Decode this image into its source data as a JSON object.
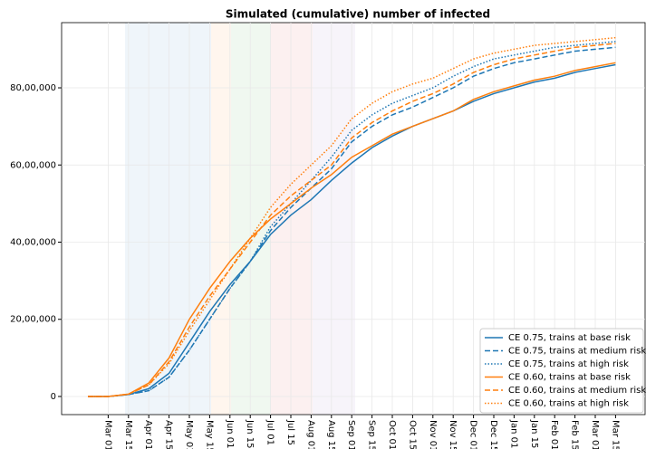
{
  "chart_data": {
    "type": "line",
    "title": "Simulated (cumulative) number of infected",
    "categories": [
      null,
      "Mar 01",
      "Mar 15",
      "Apr 01",
      "Apr 15",
      "May 01",
      "May 15",
      "Jun 01",
      "Jun 15",
      "Jul 01",
      "Jul 15",
      "Aug 01",
      "Aug 15",
      "Sep 01",
      "Sep 15",
      "Oct 01",
      "Oct 15",
      "Nov 01",
      "Nov 15",
      "Dec 01",
      "Dec 15",
      "Jan 01",
      "Jan 15",
      "Feb 01",
      "Feb 15",
      "Mar 01",
      "Mar 15"
    ],
    "series": [
      {
        "name": "CE 0.75, trains at base risk",
        "color": "#1f77b4",
        "dash": "solid",
        "values": [
          0,
          0,
          50000,
          200000,
          600000,
          1400000,
          2200000,
          2900000,
          3500000,
          4200000,
          4700000,
          5100000,
          5600000,
          6050000,
          6450000,
          6750000,
          7000000,
          7200000,
          7400000,
          7650000,
          7850000,
          8000000,
          8150000,
          8250000,
          8400000,
          8500000,
          8600000
        ]
      },
      {
        "name": "CE 0.75, trains at medium risk",
        "color": "#1f77b4",
        "dash": "dashed",
        "values": [
          0,
          0,
          50000,
          150000,
          500000,
          1200000,
          2000000,
          2800000,
          3500000,
          4300000,
          4900000,
          5400000,
          5900000,
          6600000,
          7000000,
          7300000,
          7500000,
          7750000,
          8000000,
          8300000,
          8500000,
          8650000,
          8750000,
          8850000,
          8950000,
          9000000,
          9050000
        ]
      },
      {
        "name": "CE 0.75, trains at high risk",
        "color": "#1f77b4",
        "dash": "dotted",
        "values": [
          0,
          0,
          50000,
          150000,
          500000,
          1200000,
          2000000,
          2800000,
          3500000,
          4400000,
          5000000,
          5600000,
          6200000,
          6900000,
          7300000,
          7600000,
          7800000,
          8000000,
          8300000,
          8550000,
          8750000,
          8850000,
          8950000,
          9050000,
          9100000,
          9150000,
          9200000
        ]
      },
      {
        "name": "CE 0.60, trains at base risk",
        "color": "#ff7f0e",
        "dash": "solid",
        "values": [
          0,
          0,
          60000,
          350000,
          1000000,
          2000000,
          2800000,
          3500000,
          4100000,
          4600000,
          5000000,
          5400000,
          5750000,
          6200000,
          6500000,
          6800000,
          7000000,
          7200000,
          7400000,
          7700000,
          7900000,
          8050000,
          8200000,
          8300000,
          8450000,
          8550000,
          8650000
        ]
      },
      {
        "name": "CE 0.60, trains at medium risk",
        "color": "#ff7f0e",
        "dash": "dashed",
        "values": [
          0,
          0,
          60000,
          300000,
          900000,
          1800000,
          2600000,
          3300000,
          4000000,
          4700000,
          5200000,
          5600000,
          6000000,
          6700000,
          7100000,
          7400000,
          7650000,
          7850000,
          8100000,
          8400000,
          8600000,
          8750000,
          8850000,
          8950000,
          9050000,
          9100000,
          9150000
        ]
      },
      {
        "name": "CE 0.60, trains at high risk",
        "color": "#ff7f0e",
        "dash": "dotted",
        "values": [
          0,
          0,
          60000,
          300000,
          850000,
          1700000,
          2500000,
          3300000,
          4100000,
          4900000,
          5500000,
          6000000,
          6500000,
          7200000,
          7600000,
          7900000,
          8100000,
          8250000,
          8500000,
          8750000,
          8900000,
          9000000,
          9100000,
          9150000,
          9200000,
          9250000,
          9300000
        ]
      }
    ],
    "ylim": [
      -470000,
      9690000
    ],
    "yticks": [
      0,
      {
        "value": 2000000,
        "label": "20,00,000"
      },
      {
        "value": 4000000,
        "label": "40,00,000"
      },
      {
        "value": 6000000,
        "label": "60,00,000"
      },
      {
        "value": 8000000,
        "label": "80,00,000"
      }
    ],
    "grid": true,
    "legend": "lower right"
  }
}
